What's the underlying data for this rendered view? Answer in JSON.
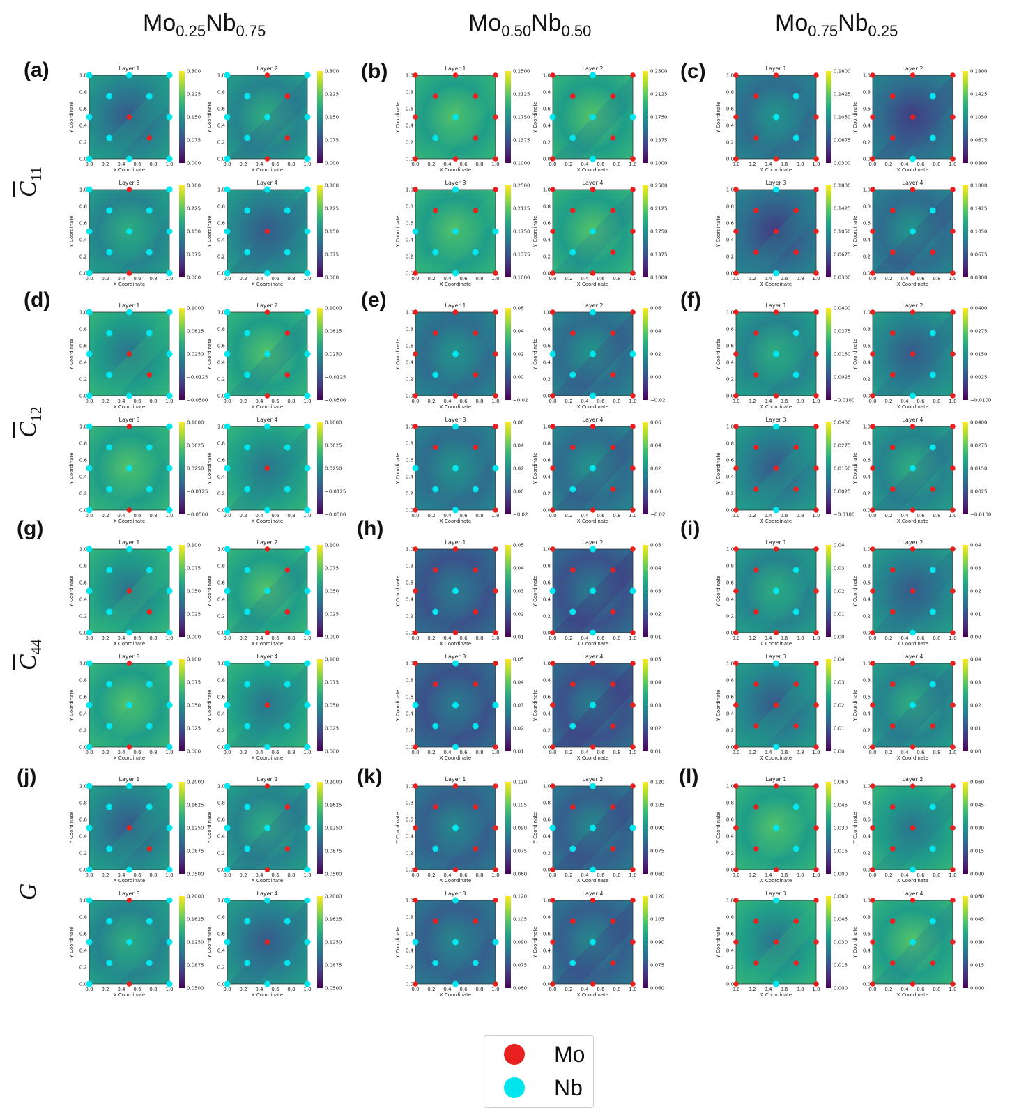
{
  "columns": [
    {
      "base1": "Mo",
      "sub1": "0.25",
      "base2": "Nb",
      "sub2": "0.75"
    },
    {
      "base1": "Mo",
      "sub1": "0.50",
      "base2": "Nb",
      "sub2": "0.50"
    },
    {
      "base1": "Mo",
      "sub1": "0.75",
      "base2": "Nb",
      "sub2": "0.25"
    }
  ],
  "rows": [
    {
      "symbol": "C",
      "sub": "11",
      "overline": true
    },
    {
      "symbol": "C",
      "sub": "12",
      "overline": true
    },
    {
      "symbol": "C",
      "sub": "44",
      "overline": true
    },
    {
      "symbol": "G",
      "sub": "",
      "overline": false
    }
  ],
  "panel_letters": [
    "(a)",
    "(b)",
    "(c)",
    "(d)",
    "(e)",
    "(f)",
    "(g)",
    "(h)",
    "(i)",
    "(j)",
    "(k)",
    "(l)"
  ],
  "legend": [
    {
      "label": "Mo",
      "color": "#e8201f"
    },
    {
      "label": "Nb",
      "color": "#00e5ee"
    }
  ],
  "chart_data": {
    "type": "heatmap",
    "colormap": "viridis",
    "subplot_titles": [
      "Layer 1",
      "Layer 2",
      "Layer 3",
      "Layer 4"
    ],
    "xlabel": "X Coordinate",
    "ylabel": "Y Coordinate",
    "xticks": [
      "0.0",
      "0.2",
      "0.4",
      "0.6",
      "0.8",
      "1.0"
    ],
    "yticks": [
      "0.0",
      "0.2",
      "0.4",
      "0.6",
      "0.8",
      "1.0"
    ],
    "xlim": [
      0,
      1
    ],
    "ylim": [
      0,
      1
    ],
    "colors": {
      "Mo": "#e8201f",
      "Nb": "#00e5ee"
    },
    "colorbar_ticks": [
      [
        [
          "0.300",
          "0.225",
          "0.150",
          "0.075",
          "0.000"
        ],
        [
          "0.2500",
          "0.2125",
          "0.1750",
          "0.1375",
          "0.1000"
        ],
        [
          "0.1800",
          "0.1425",
          "0.1050",
          "0.0675",
          "0.0300"
        ]
      ],
      [
        [
          "0.1000",
          "0.0625",
          "0.0250",
          "−0.0125",
          "−0.0500"
        ],
        [
          "0.06",
          "0.04",
          "0.02",
          "0.00",
          "−0.02"
        ],
        [
          "0.0400",
          "0.0275",
          "0.0150",
          "0.0025",
          "−0.0100"
        ]
      ],
      [
        [
          "0.100",
          "0.075",
          "0.050",
          "0.025",
          "0.000"
        ],
        [
          "0.05",
          "0.04",
          "0.03",
          "0.02",
          "0.01"
        ],
        [
          "0.04",
          "0.03",
          "0.02",
          "0.01",
          "0.00"
        ]
      ],
      [
        [
          "0.2000",
          "0.1625",
          "0.1250",
          "0.0875",
          "0.0500"
        ],
        [
          "0.120",
          "0.105",
          "0.090",
          "0.075",
          "0.060"
        ],
        [
          "0.060",
          "0.045",
          "0.030",
          "0.015",
          "0.000"
        ]
      ]
    ],
    "atom_sites": {
      "layer_1_3": [
        [
          0,
          0
        ],
        [
          1,
          0
        ],
        [
          0,
          1
        ],
        [
          1,
          1
        ],
        [
          0.5,
          0
        ],
        [
          0.5,
          1
        ],
        [
          0,
          0.5
        ],
        [
          1,
          0.5
        ],
        [
          0.25,
          0.25
        ],
        [
          0.75,
          0.25
        ],
        [
          0.25,
          0.75
        ],
        [
          0.75,
          0.75
        ],
        [
          0.5,
          0.5
        ]
      ],
      "layer_2_4": [
        [
          0,
          0
        ],
        [
          1,
          0
        ],
        [
          0,
          1
        ],
        [
          1,
          1
        ],
        [
          0.5,
          0
        ],
        [
          0.5,
          1
        ],
        [
          0,
          0.5
        ],
        [
          1,
          0.5
        ],
        [
          0.25,
          0.25
        ],
        [
          0.75,
          0.25
        ],
        [
          0.25,
          0.75
        ],
        [
          0.75,
          0.75
        ],
        [
          0.5,
          0.5
        ]
      ]
    },
    "atom_species": {
      "col0": {
        "L1": [
          "Nb",
          "Nb",
          "Nb",
          "Nb",
          "Nb",
          "Nb",
          "Nb",
          "Nb",
          "Nb",
          "Mo",
          "Nb",
          "Nb",
          "Mo"
        ],
        "L2": [
          "Nb",
          "Nb",
          "Nb",
          "Nb",
          "Mo",
          "Mo",
          "Nb",
          "Nb",
          "Nb",
          "Mo",
          "Nb",
          "Mo",
          "Nb"
        ],
        "L3": [
          "Nb",
          "Nb",
          "Nb",
          "Nb",
          "Mo",
          "Mo",
          "Nb",
          "Nb",
          "Nb",
          "Nb",
          "Nb",
          "Nb",
          "Nb"
        ],
        "L4": [
          "Nb",
          "Nb",
          "Nb",
          "Nb",
          "Nb",
          "Nb",
          "Nb",
          "Nb",
          "Nb",
          "Nb",
          "Nb",
          "Nb",
          "Mo"
        ]
      },
      "col1": {
        "L1": [
          "Mo",
          "Mo",
          "Mo",
          "Mo",
          "Mo",
          "Mo",
          "Mo",
          "Mo",
          "Nb",
          "Mo",
          "Mo",
          "Mo",
          "Nb"
        ],
        "L2": [
          "Mo",
          "Mo",
          "Mo",
          "Mo",
          "Nb",
          "Nb",
          "Nb",
          "Nb",
          "Nb",
          "Mo",
          "Mo",
          "Mo",
          "Nb"
        ],
        "L3": [
          "Mo",
          "Mo",
          "Mo",
          "Mo",
          "Nb",
          "Nb",
          "Nb",
          "Nb",
          "Nb",
          "Nb",
          "Mo",
          "Mo",
          "Nb"
        ],
        "L4": [
          "Mo",
          "Mo",
          "Mo",
          "Mo",
          "Mo",
          "Mo",
          "Mo",
          "Mo",
          "Nb",
          "Mo",
          "Mo",
          "Mo",
          "Nb"
        ]
      },
      "col2": {
        "L1": [
          "Mo",
          "Mo",
          "Mo",
          "Mo",
          "Mo",
          "Mo",
          "Mo",
          "Mo",
          "Mo",
          "Nb",
          "Mo",
          "Nb",
          "Nb"
        ],
        "L2": [
          "Mo",
          "Mo",
          "Mo",
          "Mo",
          "Nb",
          "Mo",
          "Mo",
          "Mo",
          "Mo",
          "Nb",
          "Mo",
          "Nb",
          "Mo"
        ],
        "L3": [
          "Mo",
          "Mo",
          "Mo",
          "Mo",
          "Nb",
          "Nb",
          "Mo",
          "Mo",
          "Mo",
          "Mo",
          "Mo",
          "Mo",
          "Mo"
        ],
        "L4": [
          "Mo",
          "Mo",
          "Mo",
          "Mo",
          "Mo",
          "Mo",
          "Mo",
          "Mo",
          "Mo",
          "Mo",
          "Mo",
          "Nb",
          "Nb"
        ]
      }
    },
    "field_level": {
      "row0": [
        0.45,
        0.55,
        0.35
      ],
      "row1": [
        0.55,
        0.35,
        0.45
      ],
      "row2": [
        0.55,
        0.25,
        0.45
      ],
      "row3": [
        0.45,
        0.3,
        0.55
      ]
    }
  }
}
